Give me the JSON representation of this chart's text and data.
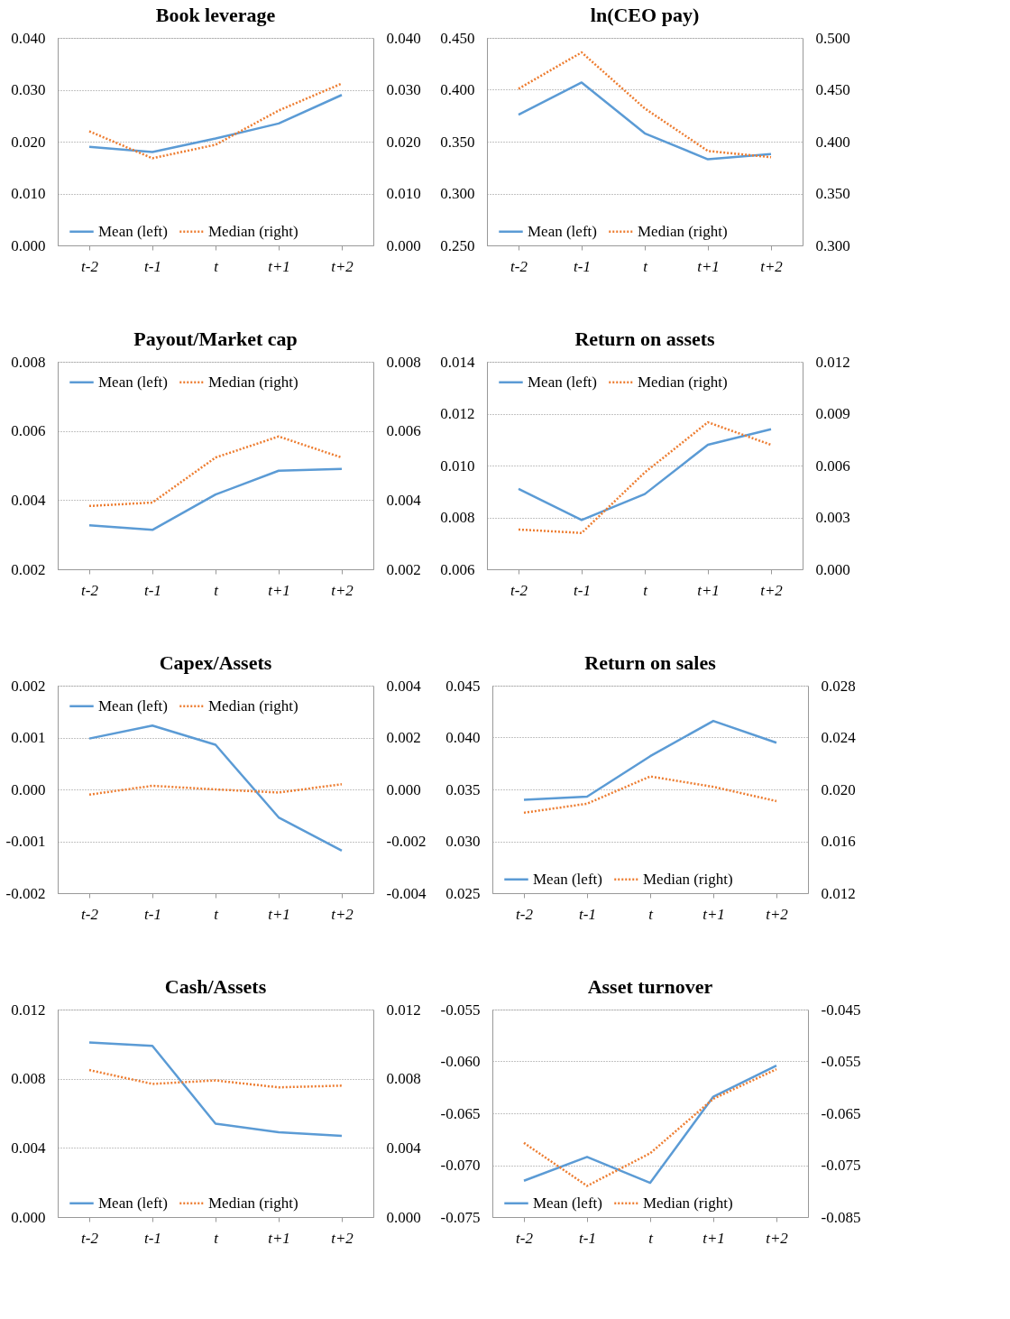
{
  "chart_data": [
    {
      "type": "line",
      "title": "Book leverage",
      "categories": [
        "t-2",
        "t-1",
        "t",
        "t+1",
        "t+2"
      ],
      "legend": "bottom",
      "grid": "y",
      "ylim": [
        0,
        0.04
      ],
      "yticks": [
        {
          "value": 0,
          "label": "0.000"
        },
        {
          "value": 0.01,
          "label": "0.010"
        },
        {
          "value": 0.02,
          "label": "0.020"
        },
        {
          "value": 0.03,
          "label": "0.030"
        },
        {
          "value": 0.04,
          "label": "0.040"
        }
      ],
      "y2lim": [
        0,
        0.04
      ],
      "y2ticks": [
        {
          "value": 0,
          "label": "0.000"
        },
        {
          "value": 0.01,
          "label": "0.010"
        },
        {
          "value": 0.02,
          "label": "0.020"
        },
        {
          "value": 0.03,
          "label": "0.030"
        },
        {
          "value": 0.04,
          "label": "0.040"
        }
      ],
      "series": [
        {
          "name": "Mean (left)",
          "color": "#5b9bd5",
          "line_style": "solid",
          "values": [
            0.019,
            0.018,
            0.0206,
            0.0235,
            0.029
          ]
        },
        {
          "name": "Median (right)",
          "color": "#ed7d31",
          "line_style": "dotted",
          "axis": "y2",
          "values": [
            0.022,
            0.0168,
            0.0194,
            0.026,
            0.0312
          ]
        }
      ]
    },
    {
      "type": "line",
      "title": "ln(CEO pay)",
      "categories": [
        "t-2",
        "t-1",
        "t",
        "t+1",
        "t+2"
      ],
      "legend": "bottom",
      "grid": "y",
      "ylim": [
        0.25,
        0.45
      ],
      "yticks": [
        {
          "value": 0.25,
          "label": "0.250"
        },
        {
          "value": 0.3,
          "label": "0.300"
        },
        {
          "value": 0.35,
          "label": "0.350"
        },
        {
          "value": 0.4,
          "label": "0.400"
        },
        {
          "value": 0.45,
          "label": "0.450"
        }
      ],
      "y2lim": [
        0.3,
        0.5
      ],
      "y2ticks": [
        {
          "value": 0.3,
          "label": "0.300"
        },
        {
          "value": 0.35,
          "label": "0.350"
        },
        {
          "value": 0.4,
          "label": "0.400"
        },
        {
          "value": 0.45,
          "label": "0.450"
        },
        {
          "value": 0.5,
          "label": "0.500"
        }
      ],
      "series": [
        {
          "name": "Mean (left)",
          "color": "#5b9bd5",
          "line_style": "solid",
          "values": [
            0.376,
            0.407,
            0.358,
            0.333,
            0.338
          ]
        },
        {
          "name": "Median (right)",
          "color": "#ed7d31",
          "line_style": "dotted",
          "axis": "y2",
          "values": [
            0.451,
            0.486,
            0.432,
            0.391,
            0.385
          ]
        }
      ]
    },
    {
      "type": "line",
      "title": "Payout/Market cap",
      "categories": [
        "t-2",
        "t-1",
        "t",
        "t+1",
        "t+2"
      ],
      "legend": "top",
      "grid": "y",
      "ylim": [
        0.002,
        0.008
      ],
      "yticks": [
        {
          "value": 0.002,
          "label": "0.002"
        },
        {
          "value": 0.004,
          "label": "0.004"
        },
        {
          "value": 0.006,
          "label": "0.006"
        },
        {
          "value": 0.008,
          "label": "0.008"
        }
      ],
      "y2lim": [
        0.002,
        0.008
      ],
      "y2ticks": [
        {
          "value": 0.002,
          "label": "0.002"
        },
        {
          "value": 0.004,
          "label": "0.004"
        },
        {
          "value": 0.006,
          "label": "0.006"
        },
        {
          "value": 0.008,
          "label": "0.008"
        }
      ],
      "series": [
        {
          "name": "Mean (left)",
          "color": "#5b9bd5",
          "line_style": "solid",
          "values": [
            0.00327,
            0.00314,
            0.00416,
            0.00485,
            0.0049
          ]
        },
        {
          "name": "Median (right)",
          "color": "#ed7d31",
          "line_style": "dotted",
          "axis": "y2",
          "values": [
            0.00383,
            0.00393,
            0.00523,
            0.00584,
            0.00523
          ]
        }
      ]
    },
    {
      "type": "line",
      "title": "Return on assets",
      "categories": [
        "t-2",
        "t-1",
        "t",
        "t+1",
        "t+2"
      ],
      "legend": "top",
      "grid": "y",
      "ylim": [
        0.006,
        0.014
      ],
      "yticks": [
        {
          "value": 0.006,
          "label": "0.006"
        },
        {
          "value": 0.008,
          "label": "0.008"
        },
        {
          "value": 0.01,
          "label": "0.010"
        },
        {
          "value": 0.012,
          "label": "0.012"
        },
        {
          "value": 0.014,
          "label": "0.014"
        }
      ],
      "y2lim": [
        0,
        0.012
      ],
      "y2ticks": [
        {
          "value": 0,
          "label": "0.000"
        },
        {
          "value": 0.003,
          "label": "0.003"
        },
        {
          "value": 0.006,
          "label": "0.006"
        },
        {
          "value": 0.009,
          "label": "0.009"
        },
        {
          "value": 0.012,
          "label": "0.012"
        }
      ],
      "series": [
        {
          "name": "Mean (left)",
          "color": "#5b9bd5",
          "line_style": "solid",
          "values": [
            0.0091,
            0.0079,
            0.0089,
            0.0108,
            0.0114
          ]
        },
        {
          "name": "Median (right)",
          "color": "#ed7d31",
          "line_style": "dotted",
          "axis": "y2",
          "values": [
            0.0023,
            0.0021,
            0.0056,
            0.0085,
            0.0072
          ]
        }
      ]
    },
    {
      "type": "line",
      "title": "Capex/Assets",
      "categories": [
        "t-2",
        "t-1",
        "t",
        "t+1",
        "t+2"
      ],
      "legend": "top",
      "grid": "y",
      "ylim": [
        -0.002,
        0.002
      ],
      "yticks": [
        {
          "value": -0.002,
          "label": "-0.002"
        },
        {
          "value": -0.001,
          "label": "-0.001"
        },
        {
          "value": 0,
          "label": "0.000"
        },
        {
          "value": 0.001,
          "label": "0.001"
        },
        {
          "value": 0.002,
          "label": "0.002"
        }
      ],
      "y2lim": [
        -0.004,
        0.004
      ],
      "y2ticks": [
        {
          "value": -0.004,
          "label": "-0.004"
        },
        {
          "value": -0.002,
          "label": "-0.002"
        },
        {
          "value": 0,
          "label": "0.000"
        },
        {
          "value": 0.002,
          "label": "0.002"
        },
        {
          "value": 0.004,
          "label": "0.004"
        }
      ],
      "series": [
        {
          "name": "Mean (left)",
          "color": "#5b9bd5",
          "line_style": "solid",
          "values": [
            0.00098,
            0.00123,
            0.00086,
            -0.00054,
            -0.00118
          ]
        },
        {
          "name": "Median (right)",
          "color": "#ed7d31",
          "line_style": "dotted",
          "axis": "y2",
          "values": [
            -0.0002,
            0.00014,
            0,
            -0.00012,
            0.0002
          ]
        }
      ]
    },
    {
      "type": "line",
      "title": "Return on sales",
      "categories": [
        "t-2",
        "t-1",
        "t",
        "t+1",
        "t+2"
      ],
      "legend": "bottom",
      "grid": "y",
      "ylim": [
        0.025,
        0.045
      ],
      "yticks": [
        {
          "value": 0.025,
          "label": "0.025"
        },
        {
          "value": 0.03,
          "label": "0.030"
        },
        {
          "value": 0.035,
          "label": "0.035"
        },
        {
          "value": 0.04,
          "label": "0.040"
        },
        {
          "value": 0.045,
          "label": "0.045"
        }
      ],
      "y2lim": [
        0.012,
        0.028
      ],
      "y2ticks": [
        {
          "value": 0.012,
          "label": "0.012"
        },
        {
          "value": 0.016,
          "label": "0.016"
        },
        {
          "value": 0.02,
          "label": "0.020"
        },
        {
          "value": 0.024,
          "label": "0.024"
        },
        {
          "value": 0.028,
          "label": "0.028"
        }
      ],
      "series": [
        {
          "name": "Mean (left)",
          "color": "#5b9bd5",
          "line_style": "solid",
          "values": [
            0.034,
            0.0343,
            0.0382,
            0.0416,
            0.0395
          ]
        },
        {
          "name": "Median (right)",
          "color": "#ed7d31",
          "line_style": "dotted",
          "axis": "y2",
          "values": [
            0.0182,
            0.0189,
            0.021,
            0.0202,
            0.0191
          ]
        }
      ]
    },
    {
      "type": "line",
      "title": "Cash/Assets",
      "categories": [
        "t-2",
        "t-1",
        "t",
        "t+1",
        "t+2"
      ],
      "legend": "bottom",
      "grid": "y",
      "ylim": [
        0,
        0.012
      ],
      "yticks": [
        {
          "value": 0,
          "label": "0.000"
        },
        {
          "value": 0.004,
          "label": "0.004"
        },
        {
          "value": 0.008,
          "label": "0.008"
        },
        {
          "value": 0.012,
          "label": "0.012"
        }
      ],
      "y2lim": [
        0,
        0.012
      ],
      "y2ticks": [
        {
          "value": 0,
          "label": "0.000"
        },
        {
          "value": 0.004,
          "label": "0.004"
        },
        {
          "value": 0.008,
          "label": "0.008"
        },
        {
          "value": 0.012,
          "label": "0.012"
        }
      ],
      "series": [
        {
          "name": "Mean (left)",
          "color": "#5b9bd5",
          "line_style": "solid",
          "values": [
            0.0101,
            0.0099,
            0.0054,
            0.0049,
            0.0047
          ]
        },
        {
          "name": "Median (right)",
          "color": "#ed7d31",
          "line_style": "dotted",
          "axis": "y2",
          "values": [
            0.0085,
            0.0077,
            0.0079,
            0.0075,
            0.0076
          ]
        }
      ]
    },
    {
      "type": "line",
      "title": "Asset turnover",
      "categories": [
        "t-2",
        "t-1",
        "t",
        "t+1",
        "t+2"
      ],
      "legend": "bottom",
      "grid": "y",
      "ylim": [
        -0.075,
        -0.055
      ],
      "yticks": [
        {
          "value": -0.075,
          "label": "-0.075"
        },
        {
          "value": -0.07,
          "label": "-0.070"
        },
        {
          "value": -0.065,
          "label": "-0.065"
        },
        {
          "value": -0.06,
          "label": "-0.060"
        },
        {
          "value": -0.055,
          "label": "-0.055"
        }
      ],
      "y2lim": [
        -0.085,
        -0.045
      ],
      "y2ticks": [
        {
          "value": -0.085,
          "label": "-0.085"
        },
        {
          "value": -0.075,
          "label": "-0.075"
        },
        {
          "value": -0.065,
          "label": "-0.065"
        },
        {
          "value": -0.055,
          "label": "-0.055"
        },
        {
          "value": -0.045,
          "label": "-0.045"
        }
      ],
      "series": [
        {
          "name": "Mean (left)",
          "color": "#5b9bd5",
          "line_style": "solid",
          "values": [
            -0.0715,
            -0.0692,
            -0.0717,
            -0.0634,
            -0.0604
          ]
        },
        {
          "name": "Median (right)",
          "color": "#ed7d31",
          "line_style": "dotted",
          "axis": "y2",
          "values": [
            -0.0707,
            -0.079,
            -0.0727,
            -0.0622,
            -0.0565
          ]
        }
      ]
    }
  ]
}
